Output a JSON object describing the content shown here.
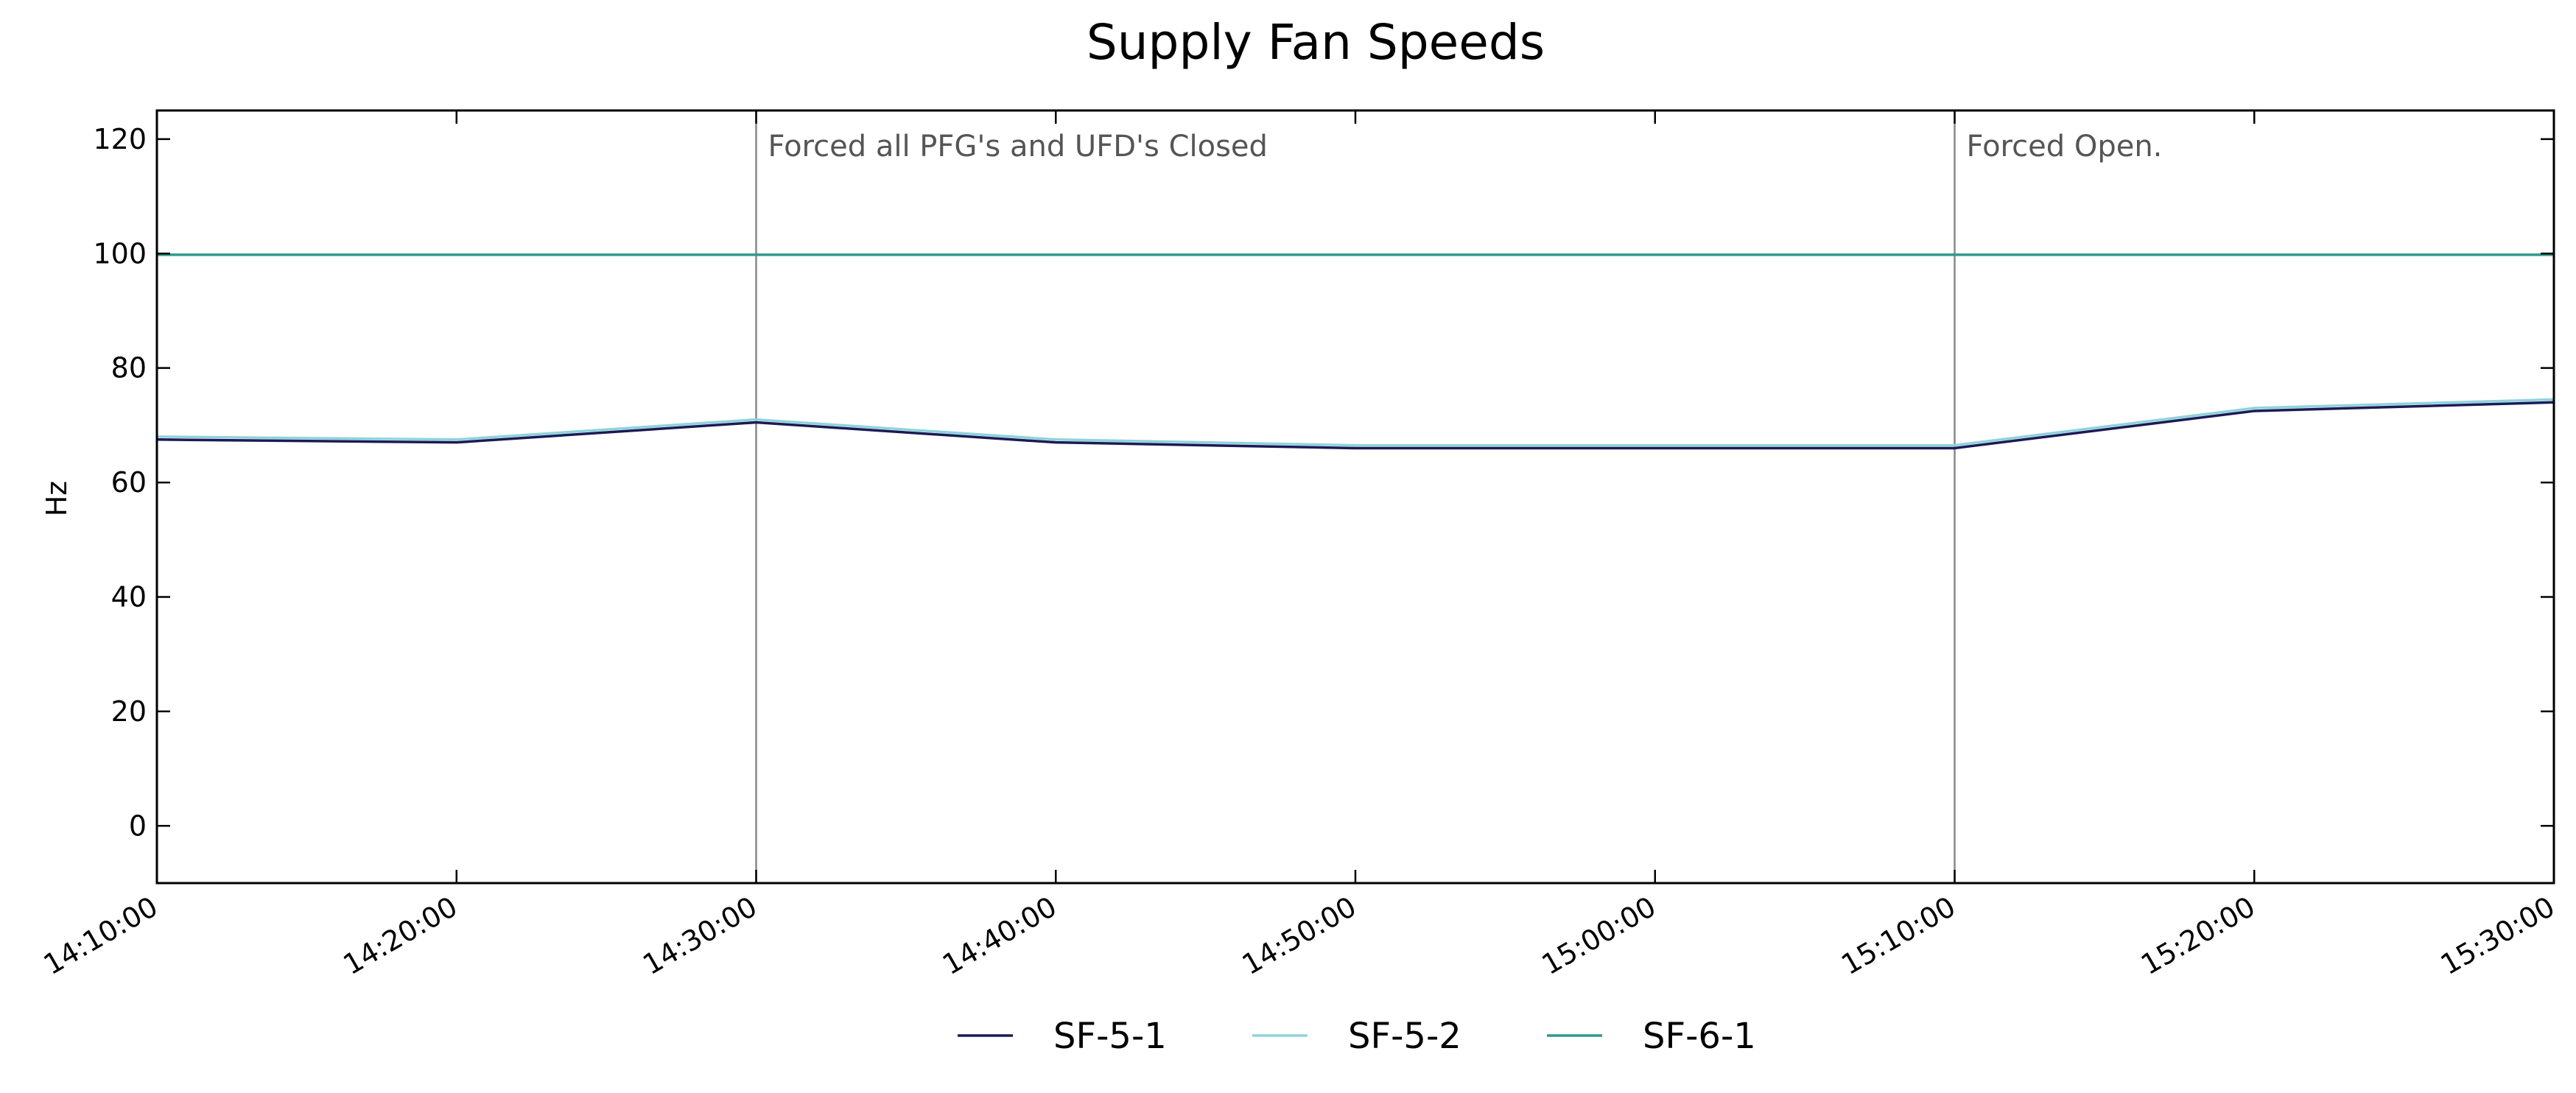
{
  "chart_data": {
    "type": "line",
    "title": "Supply Fan Speeds",
    "xlabel": "",
    "ylabel": "Hz",
    "x": [
      "14:10:00",
      "14:20:00",
      "14:30:00",
      "14:40:00",
      "14:50:00",
      "15:00:00",
      "15:10:00",
      "15:20:00",
      "15:30:00"
    ],
    "x_tick_labels": [
      "14:10:00",
      "14:20:00",
      "14:30:00",
      "14:40:00",
      "14:50:00",
      "15:00:00",
      "15:10:00",
      "15:20:00",
      "15:30:00"
    ],
    "ylim": [
      -10,
      125
    ],
    "y_ticks": [
      0,
      20,
      40,
      60,
      80,
      100,
      120
    ],
    "grid": false,
    "legend_position": "bottom-center",
    "series": [
      {
        "name": "SF-5-1",
        "color": "#1b1a55",
        "values": [
          67.5,
          67.0,
          70.5,
          67.0,
          66.0,
          66.0,
          66.0,
          72.5,
          74.0
        ]
      },
      {
        "name": "SF-5-2",
        "color": "#8fd3dc",
        "values": [
          68.0,
          67.5,
          71.0,
          67.5,
          66.5,
          66.5,
          66.5,
          73.0,
          74.5
        ]
      },
      {
        "name": "SF-6-1",
        "color": "#2f9a8a",
        "values": [
          99.8,
          99.8,
          99.8,
          99.8,
          99.8,
          99.8,
          99.8,
          99.8,
          99.8
        ]
      }
    ],
    "annotations": [
      {
        "x": "14:30:00",
        "text": "Forced all PFG's and UFD's Closed"
      },
      {
        "x": "15:10:00",
        "text": "Forced Open."
      }
    ]
  }
}
